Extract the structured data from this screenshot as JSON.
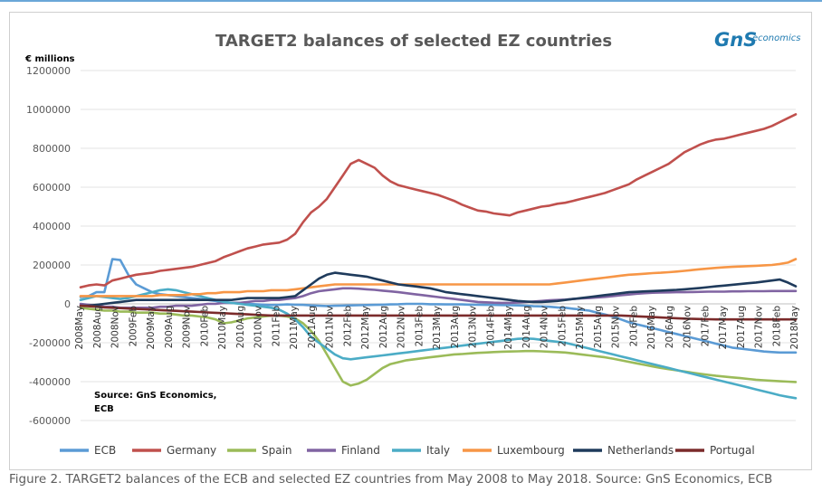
{
  "chart_data": {
    "type": "line",
    "title": "TARGET2 balances of selected EZ countries",
    "ylabel": "€ millions",
    "ylim": [
      -600000,
      1200000
    ],
    "y_ticks": [
      "1200000",
      "1000000",
      "800000",
      "600000",
      "400000",
      "200000",
      "0",
      "-200000",
      "-400000",
      "-600000"
    ],
    "x_ticks": [
      "2008May",
      "2008Aug",
      "2008Nov",
      "2009Feb",
      "2009May",
      "2009Aug",
      "2009Nov",
      "2010Feb",
      "2010May",
      "2010Aug",
      "2010Nov",
      "2011Feb",
      "2011May",
      "2011Aug",
      "2011Nov",
      "2012Feb",
      "2012May",
      "2012Aug",
      "2012Nov",
      "2013Feb",
      "2013May",
      "2013Aug",
      "2013Nov",
      "2014Feb",
      "2014May",
      "2014Aug",
      "2014Nov",
      "2015Feb",
      "2015May",
      "2015Aug",
      "2015Nov",
      "2016Feb",
      "2016May",
      "2016Aug",
      "2016Nov",
      "2017Feb",
      "2017May",
      "2017Aug",
      "2017Nov",
      "2018Feb",
      "2018May"
    ],
    "source_note": "Source: GnS Economics, ECB",
    "series": [
      {
        "name": "ECB",
        "color": "#5b9bd5",
        "values": [
          35000,
          40000,
          60000,
          60000,
          230000,
          225000,
          150000,
          100000,
          80000,
          60000,
          50000,
          45000,
          40000,
          35000,
          30000,
          25000,
          20000,
          15000,
          10000,
          5000,
          5000,
          0,
          -2000,
          -4000,
          -6000,
          -5000,
          -3000,
          -4000,
          -5000,
          -8000,
          -10000,
          -11000,
          -10000,
          -9000,
          -8000,
          -7000,
          -6000,
          -5000,
          -4000,
          -3000,
          -2000,
          0,
          0,
          0,
          -2000,
          -2000,
          -3000,
          -3000,
          -3000,
          -4000,
          -4000,
          -5000,
          -5000,
          -6000,
          -7000,
          -8000,
          -10000,
          -12000,
          -13000,
          -15000,
          -18000,
          -20000,
          -25000,
          -30000,
          -35000,
          -45000,
          -55000,
          -65000,
          -80000,
          -95000,
          -105000,
          -115000,
          -125000,
          -135000,
          -145000,
          -155000,
          -165000,
          -175000,
          -185000,
          -195000,
          -205000,
          -215000,
          -225000,
          -230000,
          -235000,
          -240000,
          -245000,
          -248000,
          -250000,
          -250000,
          -250000
        ]
      },
      {
        "name": "Germany",
        "color": "#c0504d",
        "values": [
          85000,
          95000,
          100000,
          95000,
          120000,
          130000,
          140000,
          150000,
          155000,
          160000,
          170000,
          175000,
          180000,
          185000,
          190000,
          200000,
          210000,
          220000,
          240000,
          255000,
          270000,
          285000,
          295000,
          305000,
          310000,
          315000,
          330000,
          360000,
          420000,
          470000,
          500000,
          540000,
          600000,
          660000,
          720000,
          740000,
          720000,
          700000,
          660000,
          630000,
          610000,
          600000,
          590000,
          580000,
          570000,
          560000,
          545000,
          530000,
          510000,
          495000,
          480000,
          475000,
          465000,
          460000,
          455000,
          470000,
          480000,
          490000,
          500000,
          505000,
          515000,
          520000,
          530000,
          540000,
          550000,
          560000,
          570000,
          585000,
          600000,
          615000,
          640000,
          660000,
          680000,
          700000,
          720000,
          750000,
          780000,
          800000,
          820000,
          835000,
          845000,
          850000,
          860000,
          870000,
          880000,
          890000,
          900000,
          915000,
          935000,
          955000,
          975000
        ]
      },
      {
        "name": "Spain",
        "color": "#9bbb59",
        "values": [
          -20000,
          -25000,
          -30000,
          -35000,
          -35000,
          -40000,
          -40000,
          -45000,
          -45000,
          -45000,
          -50000,
          -50000,
          -55000,
          -60000,
          -60000,
          -65000,
          -70000,
          -80000,
          -100000,
          -95000,
          -85000,
          -75000,
          -70000,
          -65000,
          -60000,
          -60000,
          -65000,
          -75000,
          -100000,
          -140000,
          -190000,
          -260000,
          -330000,
          -400000,
          -420000,
          -410000,
          -390000,
          -360000,
          -330000,
          -310000,
          -300000,
          -290000,
          -285000,
          -280000,
          -275000,
          -270000,
          -265000,
          -260000,
          -258000,
          -255000,
          -252000,
          -250000,
          -248000,
          -246000,
          -245000,
          -244000,
          -243000,
          -243000,
          -244000,
          -246000,
          -248000,
          -250000,
          -255000,
          -260000,
          -265000,
          -270000,
          -275000,
          -282000,
          -290000,
          -298000,
          -306000,
          -314000,
          -322000,
          -330000,
          -336000,
          -342000,
          -348000,
          -354000,
          -360000,
          -365000,
          -370000,
          -374000,
          -378000,
          -382000,
          -386000,
          -390000,
          -393000,
          -396000,
          -398000,
          -400000,
          -402000
        ]
      },
      {
        "name": "Finland",
        "color": "#8064a2",
        "values": [
          0,
          -5000,
          -10000,
          -15000,
          -15000,
          -20000,
          -20000,
          -20000,
          -20000,
          -20000,
          -15000,
          -15000,
          -10000,
          -10000,
          -10000,
          -5000,
          0,
          0,
          5000,
          5000,
          5000,
          10000,
          15000,
          15000,
          20000,
          20000,
          25000,
          30000,
          40000,
          55000,
          65000,
          70000,
          75000,
          80000,
          80000,
          78000,
          75000,
          72000,
          68000,
          64000,
          60000,
          55000,
          50000,
          45000,
          40000,
          35000,
          30000,
          25000,
          20000,
          15000,
          10000,
          8000,
          6000,
          5000,
          5000,
          7000,
          10000,
          12000,
          15000,
          18000,
          20000,
          22000,
          25000,
          28000,
          30000,
          33000,
          36000,
          40000,
          44000,
          48000,
          52000,
          55000,
          57000,
          58000,
          59000,
          60000,
          60000,
          61000,
          62000,
          63000,
          63000,
          63000,
          64000,
          64000,
          65000,
          65000,
          65000,
          66000,
          66000,
          66000,
          66000
        ]
      },
      {
        "name": "Italy",
        "color": "#4bacc6",
        "values": [
          20000,
          30000,
          40000,
          35000,
          30000,
          25000,
          30000,
          40000,
          50000,
          60000,
          70000,
          75000,
          70000,
          60000,
          50000,
          40000,
          30000,
          20000,
          10000,
          5000,
          0,
          -5000,
          -10000,
          -15000,
          -20000,
          -30000,
          -50000,
          -80000,
          -120000,
          -170000,
          -200000,
          -230000,
          -260000,
          -280000,
          -285000,
          -280000,
          -275000,
          -270000,
          -265000,
          -260000,
          -255000,
          -250000,
          -245000,
          -240000,
          -235000,
          -230000,
          -225000,
          -220000,
          -215000,
          -210000,
          -205000,
          -200000,
          -195000,
          -190000,
          -185000,
          -180000,
          -178000,
          -180000,
          -185000,
          -190000,
          -195000,
          -200000,
          -210000,
          -220000,
          -230000,
          -240000,
          -250000,
          -260000,
          -270000,
          -280000,
          -290000,
          -300000,
          -310000,
          -320000,
          -330000,
          -340000,
          -350000,
          -360000,
          -370000,
          -380000,
          -390000,
          -400000,
          -410000,
          -420000,
          -430000,
          -440000,
          -450000,
          -460000,
          -470000,
          -478000,
          -485000
        ]
      },
      {
        "name": "Luxembourg",
        "color": "#f79646",
        "values": [
          40000,
          40000,
          40000,
          40000,
          40000,
          40000,
          40000,
          40000,
          40000,
          40000,
          45000,
          45000,
          45000,
          45000,
          50000,
          50000,
          55000,
          55000,
          60000,
          60000,
          60000,
          65000,
          65000,
          65000,
          70000,
          70000,
          70000,
          75000,
          80000,
          85000,
          90000,
          95000,
          100000,
          100000,
          100000,
          100000,
          100000,
          100000,
          100000,
          100000,
          100000,
          100000,
          100000,
          100000,
          100000,
          100000,
          100000,
          100000,
          100000,
          100000,
          100000,
          100000,
          100000,
          100000,
          100000,
          100000,
          100000,
          100000,
          100000,
          100000,
          105000,
          110000,
          115000,
          120000,
          125000,
          130000,
          135000,
          140000,
          145000,
          150000,
          152000,
          155000,
          158000,
          160000,
          163000,
          166000,
          170000,
          174000,
          178000,
          182000,
          185000,
          188000,
          190000,
          192000,
          194000,
          196000,
          198000,
          200000,
          205000,
          212000,
          230000
        ]
      },
      {
        "name": "Netherlands",
        "color": "#1f3b5c",
        "values": [
          -10000,
          -10000,
          -5000,
          0,
          5000,
          10000,
          15000,
          20000,
          20000,
          20000,
          20000,
          20000,
          20000,
          20000,
          20000,
          20000,
          20000,
          20000,
          20000,
          20000,
          25000,
          30000,
          30000,
          30000,
          30000,
          30000,
          35000,
          40000,
          70000,
          100000,
          130000,
          150000,
          160000,
          155000,
          150000,
          145000,
          140000,
          130000,
          120000,
          110000,
          100000,
          95000,
          90000,
          85000,
          80000,
          70000,
          60000,
          55000,
          50000,
          45000,
          40000,
          35000,
          30000,
          25000,
          20000,
          15000,
          12000,
          10000,
          10000,
          12000,
          15000,
          20000,
          25000,
          30000,
          35000,
          40000,
          45000,
          50000,
          55000,
          60000,
          62000,
          64000,
          66000,
          68000,
          70000,
          72000,
          75000,
          78000,
          82000,
          86000,
          90000,
          94000,
          98000,
          102000,
          106000,
          110000,
          115000,
          120000,
          125000,
          110000,
          90000
        ]
      },
      {
        "name": "Portugal",
        "color": "#7b2b2b",
        "values": [
          -10000,
          -12000,
          -15000,
          -18000,
          -20000,
          -22000,
          -24000,
          -26000,
          -28000,
          -30000,
          -32000,
          -34000,
          -36000,
          -38000,
          -40000,
          -42000,
          -44000,
          -46000,
          -48000,
          -50000,
          -52000,
          -54000,
          -56000,
          -58000,
          -60000,
          -60000,
          -60000,
          -60000,
          -60000,
          -60000,
          -60000,
          -60000,
          -60000,
          -60000,
          -60000,
          -60000,
          -60000,
          -60000,
          -60000,
          -60000,
          -60000,
          -60000,
          -60000,
          -60000,
          -60000,
          -60000,
          -60000,
          -60000,
          -60000,
          -60000,
          -60000,
          -60000,
          -60000,
          -60000,
          -60000,
          -60000,
          -60000,
          -60000,
          -60000,
          -60000,
          -60000,
          -60000,
          -60000,
          -60000,
          -60000,
          -60000,
          -60000,
          -60000,
          -60000,
          -62000,
          -64000,
          -66000,
          -68000,
          -70000,
          -72000,
          -74000,
          -76000,
          -77000,
          -78000,
          -79000,
          -80000,
          -80000,
          -80000,
          -80000,
          -80000,
          -80000,
          -80000,
          -80000,
          -80000,
          -80000,
          -80000
        ]
      }
    ]
  },
  "logo": {
    "mark": "GnS",
    "word": "economics"
  },
  "caption": "Figure 2. TARGET2 balances of the ECB and selected EZ countries from May 2008 to May 2018. Source: GnS Economics, ECB"
}
